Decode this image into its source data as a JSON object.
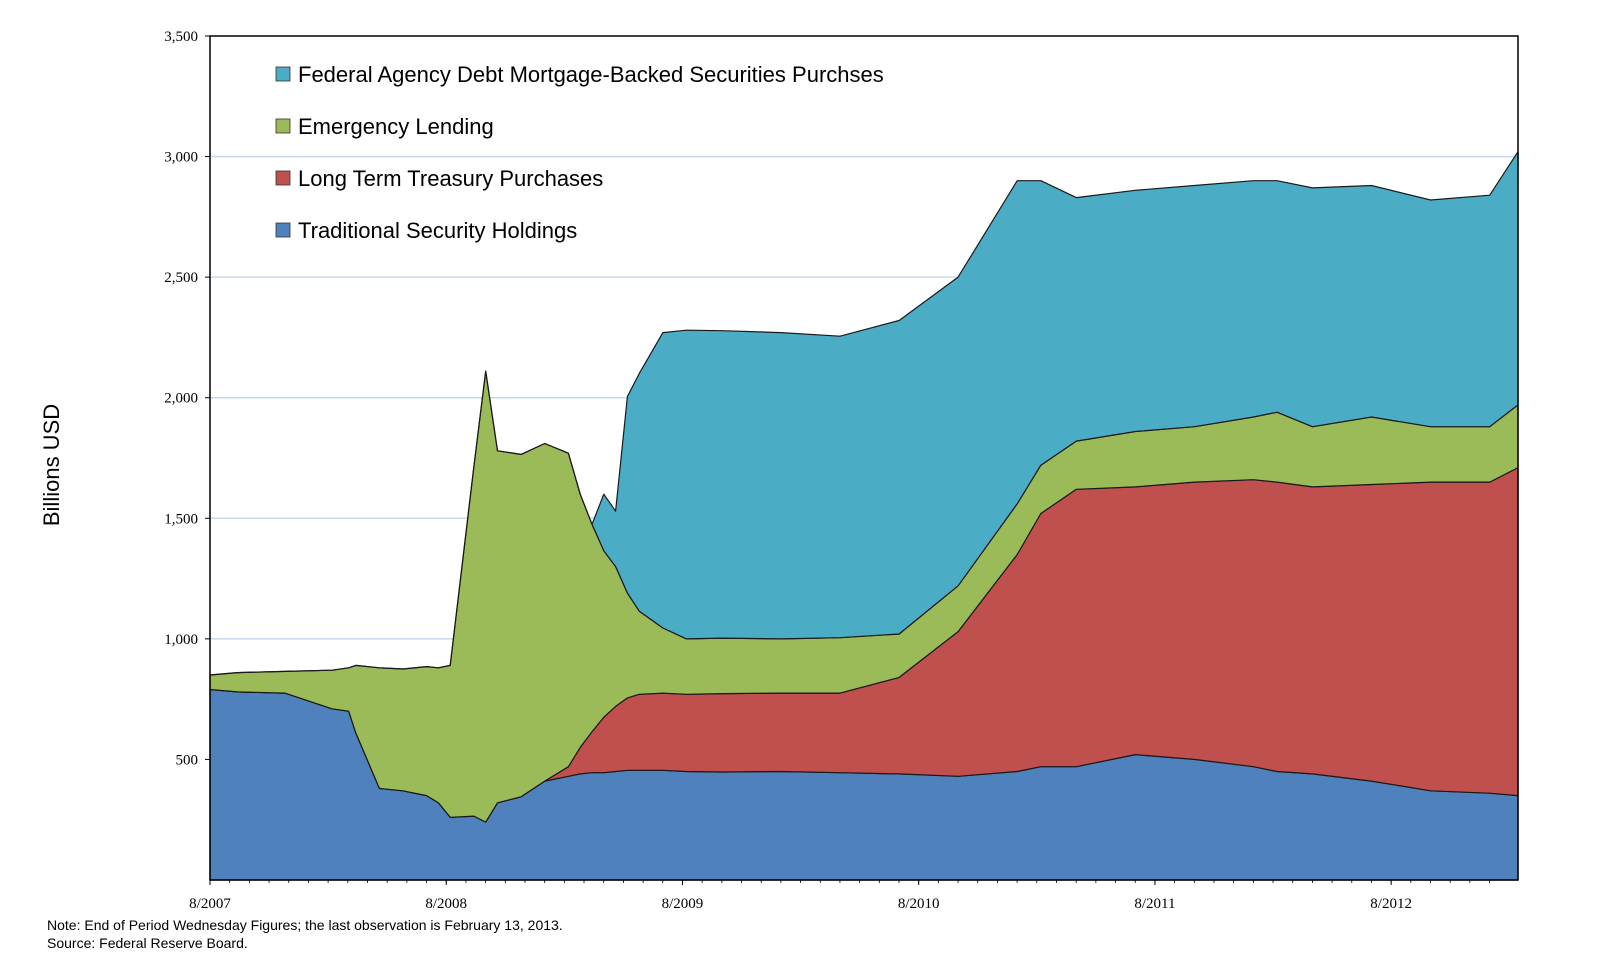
{
  "chart_data": {
    "type": "area",
    "stacked": true,
    "ylabel": "Billions USD",
    "xlabel": "",
    "ylim": [
      0,
      3500
    ],
    "yticks": [
      500,
      1000,
      1500,
      2000,
      2500,
      3000,
      3500
    ],
    "ytick_labels": [
      "500",
      "1,000",
      "1,500",
      "2,000",
      "2,500",
      "3,000",
      "3,500"
    ],
    "xlim": [
      2007.583,
      2013.12
    ],
    "xticks": [
      2007.583,
      2008.583,
      2009.583,
      2010.583,
      2011.583,
      2012.583
    ],
    "xtick_labels": [
      "8/2007",
      "8/2008",
      "8/2009",
      "8/2010",
      "8/2011",
      "8/2012"
    ],
    "grid": true,
    "legend_position": "top-left",
    "x": [
      2007.583,
      2007.7,
      2007.9,
      2008.1,
      2008.17,
      2008.2,
      2008.3,
      2008.4,
      2008.5,
      2008.55,
      2008.6,
      2008.7,
      2008.75,
      2008.8,
      2008.9,
      2009.0,
      2009.1,
      2009.15,
      2009.2,
      2009.25,
      2009.3,
      2009.35,
      2009.4,
      2009.5,
      2009.6,
      2009.75,
      2010.0,
      2010.25,
      2010.5,
      2010.75,
      2011.0,
      2011.1,
      2011.25,
      2011.5,
      2011.75,
      2012.0,
      2012.1,
      2012.25,
      2012.5,
      2012.75,
      2013.0,
      2013.12
    ],
    "series": [
      {
        "name": "Traditional Security Holdings",
        "color": "#4f81bd",
        "values": [
          790,
          780,
          775,
          710,
          700,
          610,
          380,
          370,
          350,
          320,
          260,
          265,
          240,
          320,
          345,
          410,
          430,
          440,
          445,
          445,
          450,
          455,
          455,
          455,
          450,
          448,
          450,
          445,
          440,
          430,
          450,
          470,
          470,
          520,
          500,
          470,
          450,
          440,
          410,
          370,
          360,
          350
        ]
      },
      {
        "name": "Long Term Treasury Purchases",
        "color": "#c0504d",
        "values": [
          0,
          0,
          0,
          0,
          0,
          0,
          0,
          0,
          0,
          0,
          0,
          0,
          0,
          0,
          0,
          0,
          40,
          110,
          170,
          230,
          270,
          300,
          315,
          320,
          320,
          325,
          325,
          330,
          400,
          600,
          900,
          1050,
          1150,
          1110,
          1150,
          1190,
          1200,
          1190,
          1230,
          1280,
          1290,
          1360
        ]
      },
      {
        "name": "Emergency Lending",
        "color": "#9bbb59",
        "values": [
          60,
          80,
          90,
          160,
          180,
          280,
          500,
          505,
          535,
          560,
          630,
          1450,
          1870,
          1460,
          1420,
          1400,
          1300,
          1050,
          860,
          690,
          580,
          435,
          345,
          270,
          230,
          230,
          225,
          230,
          180,
          190,
          210,
          200,
          200,
          230,
          230,
          260,
          290,
          250,
          280,
          230,
          230,
          260
        ]
      },
      {
        "name": "Federal Agency Debt Mortgage-Backed Securities Purchses",
        "color": "#4bacc6",
        "values": [
          0,
          0,
          0,
          0,
          0,
          0,
          0,
          0,
          0,
          0,
          0,
          0,
          0,
          0,
          0,
          0,
          0,
          0,
          0,
          235,
          230,
          815,
          985,
          1225,
          1280,
          1275,
          1270,
          1250,
          1300,
          1280,
          1340,
          1180,
          1010,
          1000,
          1000,
          980,
          960,
          990,
          960,
          940,
          960,
          1050
        ]
      }
    ]
  },
  "legend": {
    "items": [
      {
        "label": "Federal Agency Debt Mortgage-Backed Securities Purchses",
        "color": "#4bacc6"
      },
      {
        "label": "Emergency Lending",
        "color": "#9bbb59"
      },
      {
        "label": "Long Term Treasury Purchases",
        "color": "#c0504d"
      },
      {
        "label": "Traditional Security Holdings",
        "color": "#4f81bd"
      }
    ]
  },
  "footer": {
    "note": "Note: End of Period Wednesday Figures; the last observation is February 13, 2013.",
    "source": "Source: Federal Reserve Board."
  }
}
